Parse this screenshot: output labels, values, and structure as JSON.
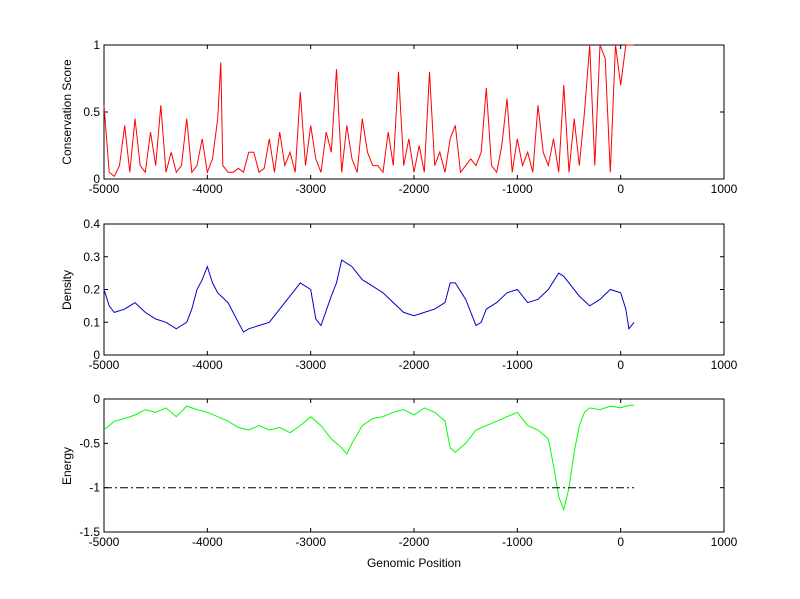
{
  "chart_data": [
    {
      "type": "line",
      "title": "",
      "xlabel": "",
      "ylabel": "Conservation Score",
      "xlim": [
        -5000,
        1000
      ],
      "ylim": [
        0,
        1
      ],
      "xticks": [
        -5000,
        -4000,
        -3000,
        -2000,
        -1000,
        0,
        1000
      ],
      "yticks": [
        0,
        0.5,
        1
      ],
      "ytick_labels": [
        "0",
        "0.5",
        "1"
      ],
      "series": [
        {
          "color": "#ff0000",
          "x": [
            -5000,
            -4950,
            -4900,
            -4850,
            -4800,
            -4750,
            -4700,
            -4650,
            -4600,
            -4550,
            -4500,
            -4450,
            -4400,
            -4350,
            -4300,
            -4250,
            -4200,
            -4150,
            -4100,
            -4050,
            -4000,
            -3950,
            -3900,
            -3870,
            -3850,
            -3800,
            -3750,
            -3700,
            -3650,
            -3600,
            -3550,
            -3500,
            -3450,
            -3400,
            -3350,
            -3300,
            -3250,
            -3200,
            -3150,
            -3100,
            -3050,
            -3000,
            -2950,
            -2900,
            -2850,
            -2800,
            -2750,
            -2700,
            -2650,
            -2600,
            -2550,
            -2500,
            -2450,
            -2400,
            -2350,
            -2300,
            -2250,
            -2200,
            -2150,
            -2100,
            -2050,
            -2000,
            -1950,
            -1900,
            -1850,
            -1800,
            -1750,
            -1700,
            -1650,
            -1600,
            -1550,
            -1500,
            -1450,
            -1400,
            -1350,
            -1300,
            -1250,
            -1200,
            -1150,
            -1100,
            -1050,
            -1000,
            -950,
            -900,
            -850,
            -800,
            -750,
            -700,
            -650,
            -600,
            -550,
            -500,
            -450,
            -400,
            -350,
            -300,
            -250,
            -200,
            -150,
            -100,
            -50,
            0,
            50,
            100,
            130
          ],
          "y": [
            0.55,
            0.05,
            0.02,
            0.1,
            0.4,
            0.05,
            0.45,
            0.1,
            0.05,
            0.35,
            0.1,
            0.55,
            0.05,
            0.2,
            0.05,
            0.1,
            0.45,
            0.05,
            0.1,
            0.3,
            0.05,
            0.15,
            0.45,
            0.87,
            0.1,
            0.05,
            0.05,
            0.08,
            0.05,
            0.2,
            0.2,
            0.05,
            0.08,
            0.3,
            0.05,
            0.35,
            0.1,
            0.2,
            0.05,
            0.65,
            0.1,
            0.4,
            0.15,
            0.05,
            0.35,
            0.2,
            0.82,
            0.05,
            0.4,
            0.15,
            0.05,
            0.45,
            0.2,
            0.1,
            0.1,
            0.05,
            0.35,
            0.1,
            0.8,
            0.1,
            0.3,
            0.05,
            0.25,
            0.05,
            0.8,
            0.1,
            0.2,
            0.05,
            0.3,
            0.4,
            0.05,
            0.1,
            0.15,
            0.1,
            0.2,
            0.68,
            0.1,
            0.05,
            0.25,
            0.6,
            0.05,
            0.3,
            0.1,
            0.2,
            0.05,
            0.55,
            0.2,
            0.1,
            0.3,
            0.05,
            0.7,
            0.05,
            0.45,
            0.1,
            0.5,
            1.0,
            0.1,
            1.0,
            0.9,
            0.05,
            1.0,
            0.7,
            1.0,
            1.0,
            1.0
          ]
        }
      ]
    },
    {
      "type": "line",
      "title": "",
      "xlabel": "",
      "ylabel": "Density",
      "xlim": [
        -5000,
        1000
      ],
      "ylim": [
        0,
        0.4
      ],
      "xticks": [
        -5000,
        -4000,
        -3000,
        -2000,
        -1000,
        0,
        1000
      ],
      "yticks": [
        0,
        0.1,
        0.2,
        0.3,
        0.4
      ],
      "ytick_labels": [
        "0",
        "0.1",
        "0.2",
        "0.3",
        "0.4"
      ],
      "series": [
        {
          "color": "#0000cc",
          "x": [
            -5000,
            -4950,
            -4900,
            -4800,
            -4700,
            -4600,
            -4500,
            -4400,
            -4300,
            -4250,
            -4200,
            -4150,
            -4100,
            -4050,
            -4000,
            -3950,
            -3900,
            -3800,
            -3700,
            -3650,
            -3600,
            -3500,
            -3400,
            -3300,
            -3200,
            -3100,
            -3000,
            -2950,
            -2900,
            -2800,
            -2750,
            -2700,
            -2650,
            -2600,
            -2500,
            -2400,
            -2300,
            -2200,
            -2100,
            -2000,
            -1900,
            -1800,
            -1700,
            -1650,
            -1600,
            -1500,
            -1400,
            -1350,
            -1300,
            -1200,
            -1100,
            -1000,
            -900,
            -800,
            -700,
            -600,
            -550,
            -500,
            -400,
            -300,
            -200,
            -100,
            0,
            50,
            80,
            130
          ],
          "y": [
            0.2,
            0.15,
            0.13,
            0.14,
            0.16,
            0.13,
            0.11,
            0.1,
            0.08,
            0.09,
            0.1,
            0.14,
            0.2,
            0.23,
            0.27,
            0.22,
            0.19,
            0.16,
            0.1,
            0.07,
            0.08,
            0.09,
            0.1,
            0.14,
            0.18,
            0.22,
            0.2,
            0.11,
            0.09,
            0.18,
            0.22,
            0.29,
            0.28,
            0.27,
            0.23,
            0.21,
            0.19,
            0.16,
            0.13,
            0.12,
            0.13,
            0.14,
            0.16,
            0.22,
            0.22,
            0.17,
            0.09,
            0.1,
            0.14,
            0.16,
            0.19,
            0.2,
            0.16,
            0.17,
            0.2,
            0.25,
            0.24,
            0.22,
            0.18,
            0.15,
            0.17,
            0.2,
            0.19,
            0.14,
            0.08,
            0.1
          ]
        }
      ]
    },
    {
      "type": "line",
      "title": "",
      "xlabel": "Genomic Position",
      "ylabel": "Energy",
      "xlim": [
        -5000,
        1000
      ],
      "ylim": [
        -1.5,
        0
      ],
      "xticks": [
        -5000,
        -4000,
        -3000,
        -2000,
        -1000,
        0,
        1000
      ],
      "yticks": [
        -1.5,
        -1,
        -0.5,
        0
      ],
      "ytick_labels": [
        "-1.5",
        "-1",
        "-0.5",
        "0"
      ],
      "series": [
        {
          "color": "#00ff00",
          "x": [
            -5000,
            -4900,
            -4800,
            -4700,
            -4600,
            -4500,
            -4400,
            -4300,
            -4200,
            -4100,
            -4000,
            -3900,
            -3800,
            -3700,
            -3600,
            -3500,
            -3400,
            -3300,
            -3200,
            -3100,
            -3000,
            -2900,
            -2800,
            -2700,
            -2650,
            -2600,
            -2500,
            -2400,
            -2300,
            -2200,
            -2100,
            -2000,
            -1900,
            -1800,
            -1700,
            -1650,
            -1600,
            -1500,
            -1400,
            -1300,
            -1200,
            -1100,
            -1000,
            -900,
            -800,
            -700,
            -650,
            -600,
            -550,
            -500,
            -450,
            -400,
            -350,
            -300,
            -200,
            -100,
            0,
            50,
            100,
            130
          ],
          "y": [
            -0.35,
            -0.25,
            -0.22,
            -0.18,
            -0.12,
            -0.15,
            -0.1,
            -0.2,
            -0.08,
            -0.12,
            -0.15,
            -0.2,
            -0.25,
            -0.32,
            -0.35,
            -0.3,
            -0.35,
            -0.32,
            -0.38,
            -0.3,
            -0.2,
            -0.3,
            -0.45,
            -0.55,
            -0.62,
            -0.5,
            -0.3,
            -0.22,
            -0.2,
            -0.15,
            -0.12,
            -0.18,
            -0.1,
            -0.15,
            -0.25,
            -0.55,
            -0.6,
            -0.5,
            -0.35,
            -0.3,
            -0.25,
            -0.2,
            -0.15,
            -0.3,
            -0.35,
            -0.45,
            -0.75,
            -1.1,
            -1.25,
            -1.0,
            -0.6,
            -0.3,
            -0.15,
            -0.1,
            -0.12,
            -0.08,
            -0.1,
            -0.08,
            -0.07,
            -0.07
          ]
        },
        {
          "color": "#000000",
          "style": "dash-dot",
          "x": [
            -5000,
            130
          ],
          "y": [
            -1,
            -1
          ]
        }
      ]
    }
  ]
}
